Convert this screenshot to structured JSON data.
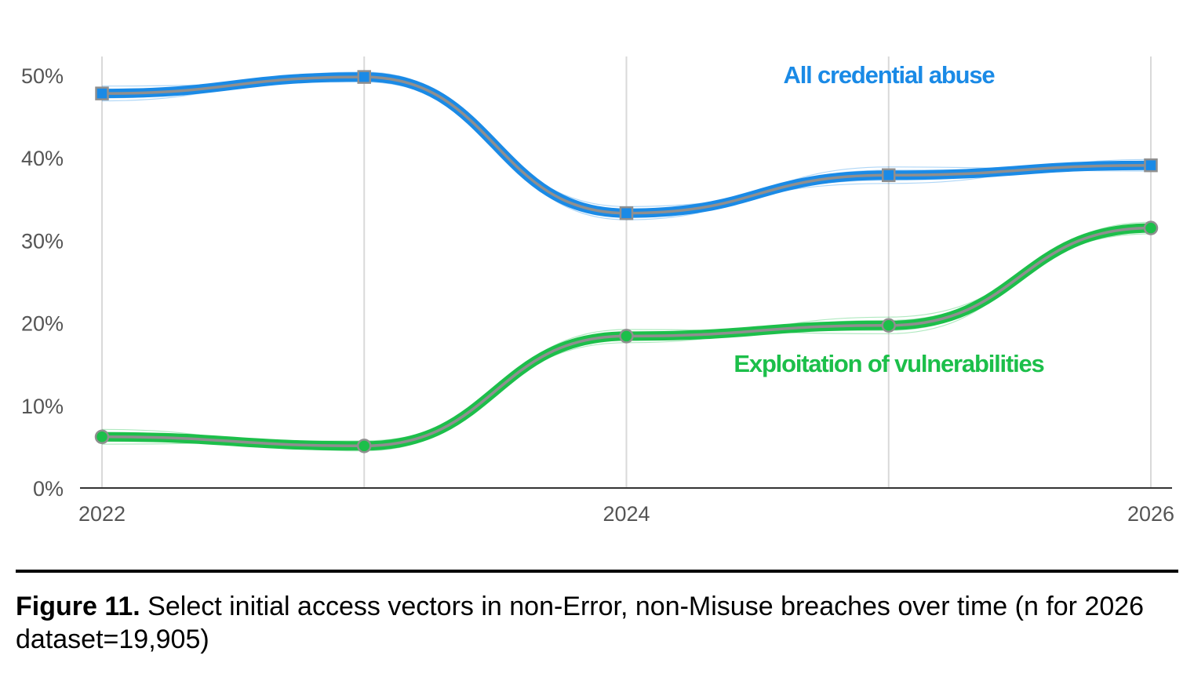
{
  "chart_data": {
    "type": "line",
    "x": [
      2022,
      2023,
      2024,
      2025,
      2026
    ],
    "x_tick_labels": [
      "2022",
      "",
      "2024",
      "",
      "2026"
    ],
    "ylim": [
      0,
      0.52
    ],
    "y_ticks": [
      0,
      0.1,
      0.2,
      0.3,
      0.4,
      0.5
    ],
    "y_tick_labels": [
      "0%",
      "10%",
      "20%",
      "30%",
      "40%",
      "50%"
    ],
    "grid": "vertical",
    "series": [
      {
        "name": "All credential abuse",
        "values": [
          0.478,
          0.498,
          0.333,
          0.379,
          0.391
        ],
        "color": "#1a8ae6",
        "marker": "square"
      },
      {
        "name": "Exploitation of vulnerabilities",
        "values": [
          0.062,
          0.051,
          0.184,
          0.197,
          0.315
        ],
        "color": "#1cbf4a",
        "marker": "circle"
      }
    ]
  },
  "caption": {
    "label": "Figure 11.",
    "text": " Select initial access vectors in non-Error, non-Misuse breaches over time (n for 2026 dataset=19,905)"
  }
}
